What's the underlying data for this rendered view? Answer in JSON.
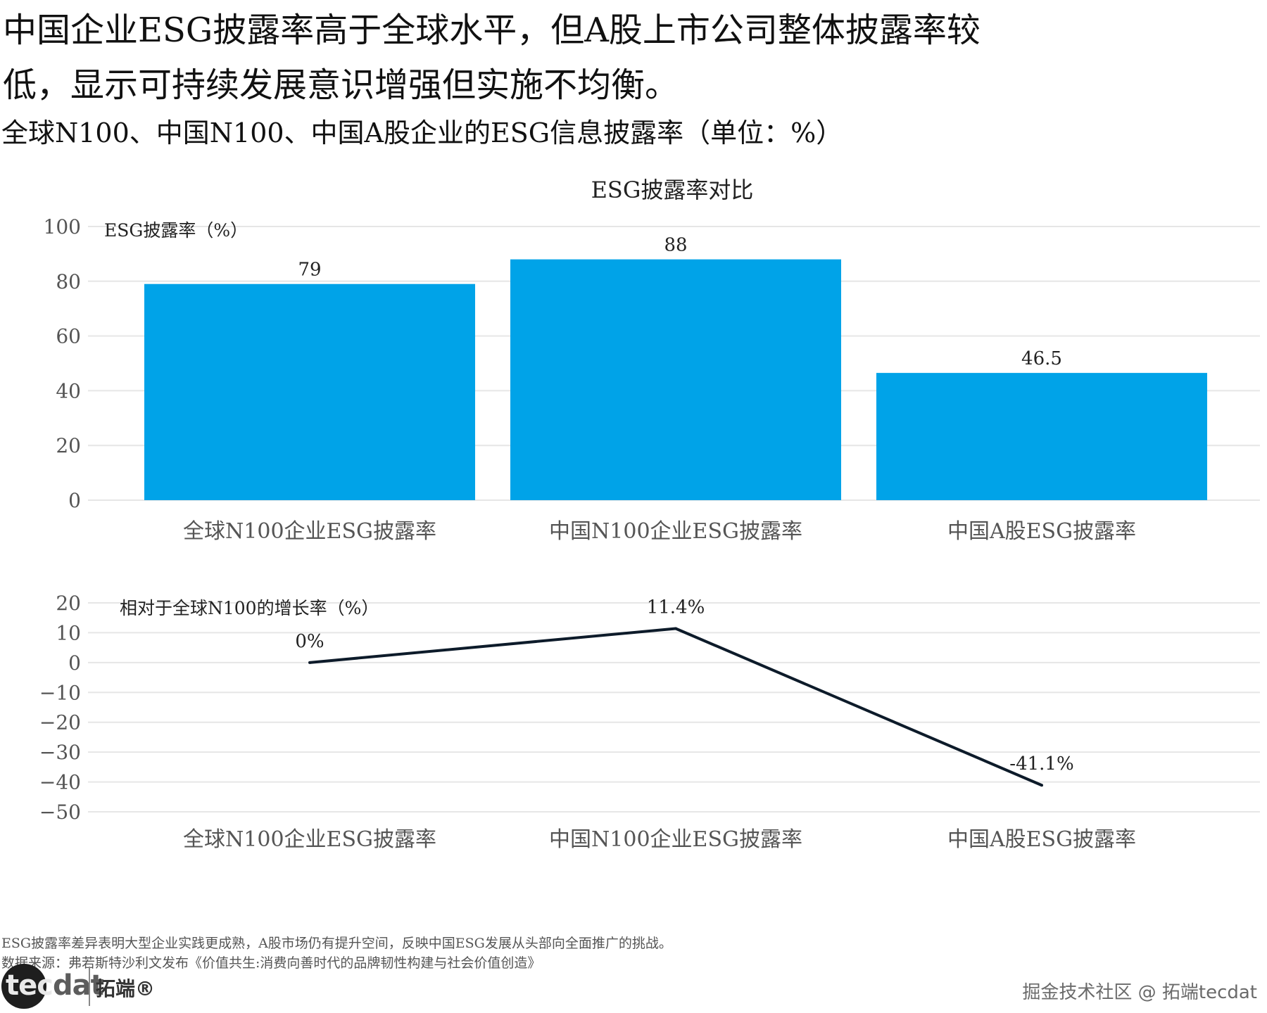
{
  "headline": "中国企业ESG披露率高于全球水平，但A股上市公司整体披露率较低，显示可持续发展意识增强但实施不均衡。",
  "subtitle": "全球N100、中国N100、中国A股企业的ESG信息披露率（单位：%）",
  "chart_data": [
    {
      "type": "bar",
      "title": "ESG披露率对比",
      "ylabel": "ESG披露率（%）",
      "xlabel": "",
      "categories": [
        "全球N100企业ESG披露率",
        "中国N100企业ESG披露率",
        "中国A股ESG披露率"
      ],
      "values": [
        79,
        88,
        46.5
      ],
      "data_labels": [
        "79",
        "88",
        "46.5"
      ],
      "ylim": [
        0,
        100
      ],
      "yticks": [
        0,
        20,
        40,
        60,
        80,
        100
      ],
      "grid": true,
      "color": "#00a3e8"
    },
    {
      "type": "line",
      "title": "",
      "ylabel": "相对于全球N100的增长率（%）",
      "xlabel": "",
      "categories": [
        "全球N100企业ESG披露率",
        "中国N100企业ESG披露率",
        "中国A股ESG披露率"
      ],
      "values": [
        0,
        11.4,
        -41.1
      ],
      "data_labels": [
        "0%",
        "11.4%",
        "-41.1%"
      ],
      "ylim": [
        -50,
        20
      ],
      "yticks": [
        -50,
        -40,
        -30,
        -20,
        -10,
        0,
        10,
        20
      ],
      "grid": true,
      "color": "#0d1b2a"
    }
  ],
  "footer": {
    "note": "ESG披露率差异表明大型企业实践更成熟，A股市场仍有提升空间，反映中国ESG发展从头部向全面推广的挑战。",
    "source": "数据来源：弗若斯特沙利文发布《价值共生:消费向善时代的品牌韧性构建与社会价值创造》"
  },
  "logo": {
    "word_part1": "tec",
    "word_part2": "dat",
    "cn": "拓端®"
  },
  "watermark": "掘金技术社区 @ 拓端tecdat"
}
